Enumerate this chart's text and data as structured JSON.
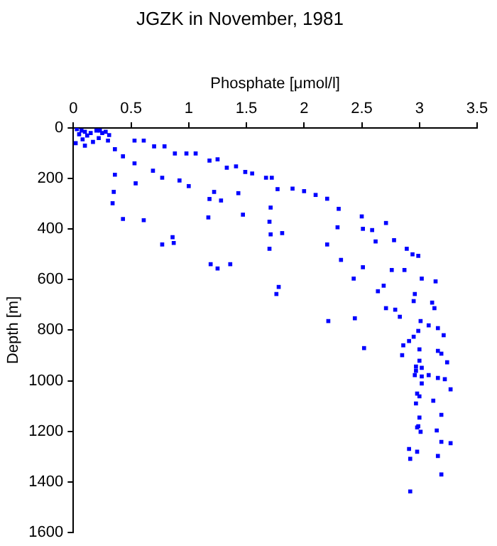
{
  "chart_data": {
    "type": "scatter",
    "title": "JGZK in November, 1981",
    "xlabel": "Phosphate [μmol/l]",
    "ylabel": "Depth [m]",
    "xlim": [
      0,
      3.5
    ],
    "xticks": [
      0,
      0.5,
      1,
      1.5,
      2,
      2.5,
      3,
      3.5
    ],
    "ylim": [
      1600,
      0
    ],
    "yticks": [
      0,
      200,
      400,
      600,
      800,
      1000,
      1200,
      1400,
      1600
    ],
    "grid": false,
    "legend": false,
    "marker": "square",
    "series": [
      {
        "color": "#0000ff",
        "x": [
          0.03,
          0.07,
          0.1,
          0.05,
          0.12,
          0.15,
          0.2,
          0.08,
          0.02,
          0.1,
          0.17,
          0.22,
          0.25,
          0.3,
          0.23,
          0.28,
          0.31,
          0.53,
          0.61,
          0.7,
          0.79,
          0.88,
          0.98,
          1.06,
          1.18,
          1.25,
          1.33,
          1.41,
          1.49,
          1.55,
          1.67,
          1.72,
          0.36,
          0.43,
          0.53,
          0.54,
          0.36,
          0.35,
          0.34,
          0.43,
          0.61,
          0.77,
          0.86,
          0.87,
          0.69,
          0.77,
          0.92,
          1.0,
          1.18,
          1.28,
          1.17,
          1.22,
          1.47,
          1.19,
          1.25,
          1.36,
          1.71,
          1.7,
          1.71,
          1.7,
          1.76,
          1.78,
          1.43,
          1.77,
          1.81,
          1.9,
          2.0,
          2.1,
          2.2,
          2.3,
          2.5,
          2.29,
          2.51,
          2.59,
          2.71,
          2.62,
          2.78,
          2.2,
          2.89,
          2.94,
          2.99,
          2.32,
          2.51,
          2.76,
          2.87,
          2.43,
          2.69,
          2.64,
          3.02,
          3.14,
          2.96,
          2.95,
          3.11,
          3.13,
          2.71,
          2.79,
          2.83,
          2.44,
          2.21,
          3.01,
          3.08,
          3.16,
          2.99,
          3.21,
          2.95,
          2.91,
          2.86,
          3.0,
          2.52,
          2.85,
          3.16,
          3.19,
          3.24,
          3.0,
          2.97,
          3.02,
          2.97,
          2.96,
          3.02,
          3.08,
          3.16,
          3.22,
          3.02,
          3.27,
          2.98,
          3.0,
          3.12,
          2.97,
          3.19,
          3.0,
          2.99,
          3.01,
          3.15,
          2.98,
          2.91,
          2.98,
          3.19,
          3.27,
          2.92,
          3.16,
          3.19,
          2.92
        ],
        "values": [
          5,
          10,
          15,
          25,
          30,
          20,
          10,
          45,
          60,
          70,
          55,
          40,
          20,
          50,
          10,
          15,
          28,
          50,
          50,
          73,
          73,
          101,
          101,
          101,
          129,
          124,
          157,
          152,
          174,
          180,
          197,
          197,
          84,
          112,
          140,
          219,
          185,
          253,
          298,
          360,
          365,
          461,
          432,
          455,
          169,
          197,
          208,
          230,
          281,
          287,
          354,
          253,
          343,
          539,
          556,
          539,
          315,
          371,
          421,
          478,
          657,
          629,
          258,
          242,
          416,
          240,
          250,
          265,
          280,
          320,
          350,
          393,
          399,
          404,
          376,
          449,
          444,
          461,
          478,
          500,
          506,
          522,
          551,
          562,
          562,
          596,
          624,
          646,
          596,
          607,
          657,
          685,
          691,
          713,
          713,
          719,
          747,
          753,
          764,
          764,
          781,
          792,
          803,
          820,
          826,
          843,
          860,
          876,
          871,
          899,
          882,
          893,
          927,
          921,
          944,
          949,
          961,
          978,
          983,
          978,
          989,
          994,
          1011,
          1034,
          1051,
          1062,
          1079,
          1090,
          1135,
          1146,
          1180,
          1202,
          1197,
          1185,
          1270,
          1281,
          1242,
          1247,
          1309,
          1298,
          1371,
          1438
        ]
      }
    ]
  }
}
